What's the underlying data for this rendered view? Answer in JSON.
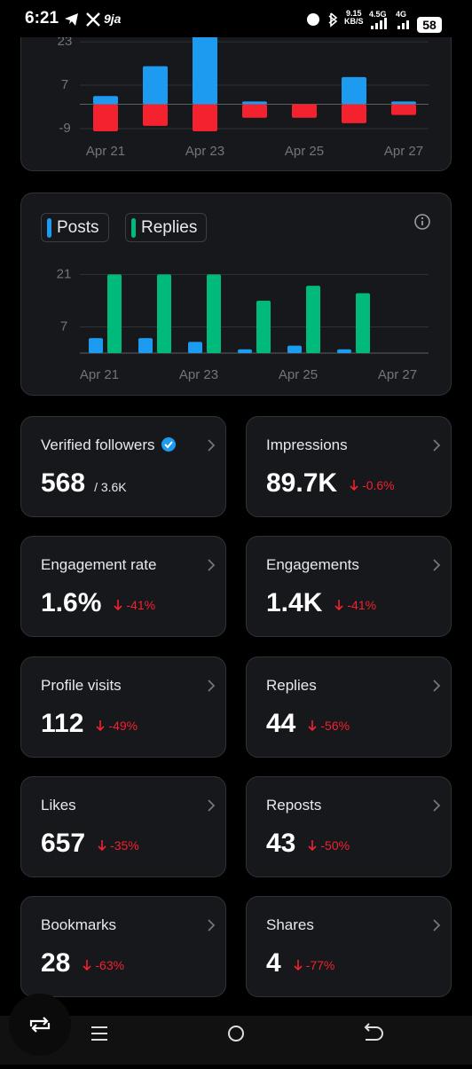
{
  "status_bar": {
    "time": "6:21",
    "app": "9ja",
    "speed": "9.15",
    "speed_unit": "KB/S",
    "network_1": "4.5G",
    "network_2": "4G",
    "battery": "58"
  },
  "chart_data": [
    {
      "type": "bar",
      "categories": [
        "Apr 21",
        null,
        "Apr 23",
        null,
        "Apr 25",
        null,
        "Apr 27"
      ],
      "series": [
        {
          "color": "#1d9bf0",
          "values": [
            3,
            14,
            30,
            1,
            0,
            10,
            1
          ]
        },
        {
          "color": "#f4212e",
          "values": [
            -10,
            -8,
            -10,
            -5,
            -5,
            -7,
            -4
          ]
        }
      ],
      "ylim": [
        -10,
        26
      ],
      "yticks": [
        -9,
        7,
        23
      ],
      "grid": true
    },
    {
      "type": "grouped_bar",
      "categories": [
        "Apr 21",
        null,
        "Apr 23",
        null,
        "Apr 25",
        null,
        "Apr 27"
      ],
      "series": [
        {
          "name": "Posts",
          "color": "#1d9bf0",
          "values": [
            4,
            4,
            3,
            1,
            2,
            1,
            0
          ]
        },
        {
          "name": "Replies",
          "color": "#00ba7c",
          "values": [
            21,
            21,
            21,
            14,
            18,
            16,
            0
          ]
        }
      ],
      "ylim": [
        0,
        23
      ],
      "yticks": [
        7,
        21
      ],
      "grid": true
    }
  ],
  "stats": [
    {
      "label": "Verified followers",
      "value": "568",
      "extra": "/ 3.6K"
    },
    {
      "label": "Impressions",
      "value": "89.7K",
      "change": "-0.6%"
    },
    {
      "label": "Engagement rate",
      "value": "1.6%",
      "change": "-41%"
    },
    {
      "label": "Engagements",
      "value": "1.4K",
      "change": "-41%"
    },
    {
      "label": "Profile visits",
      "value": "112",
      "change": "-49%"
    },
    {
      "label": "Replies",
      "value": "44",
      "change": "-56%"
    },
    {
      "label": "Likes",
      "value": "657",
      "change": "-35%"
    },
    {
      "label": "Reposts",
      "value": "43",
      "change": "-50%"
    },
    {
      "label": "Bookmarks",
      "value": "28",
      "change": "-63%"
    },
    {
      "label": "Shares",
      "value": "4",
      "change": "-77%"
    }
  ]
}
